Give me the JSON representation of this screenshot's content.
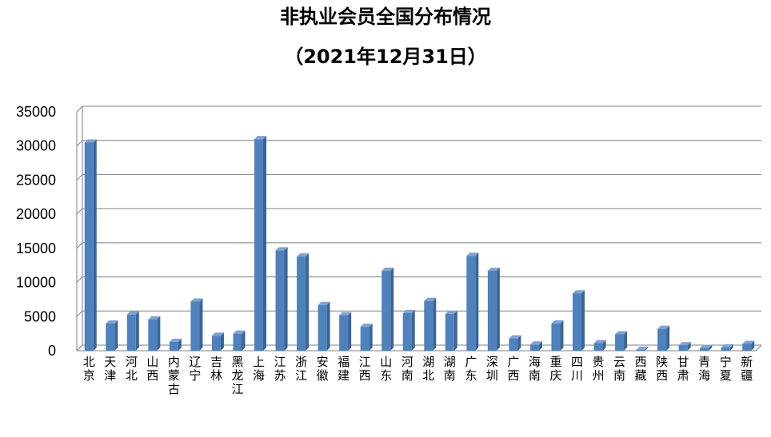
{
  "chart_data": {
    "type": "bar",
    "title": "非执业会员全国分布情况",
    "subtitle": "（2021年12月31日）",
    "ylim": [
      0,
      35000
    ],
    "yticks": [
      0,
      5000,
      10000,
      15000,
      20000,
      25000,
      30000,
      35000
    ],
    "grid": true,
    "categories": [
      "北京",
      "天津",
      "河北",
      "山西",
      "内蒙古",
      "辽宁",
      "吉林",
      "黑龙江",
      "上海",
      "江苏",
      "浙江",
      "安徽",
      "福建",
      "江西",
      "山东",
      "河南",
      "湖北",
      "湖南",
      "广东",
      "深圳",
      "广西",
      "海南",
      "重庆",
      "四川",
      "贵州",
      "云南",
      "西藏",
      "陕西",
      "甘肃",
      "青海",
      "宁夏",
      "新疆"
    ],
    "values": [
      30500,
      4000,
      5300,
      4600,
      1300,
      7200,
      2200,
      2500,
      31000,
      14700,
      13800,
      6700,
      5200,
      3500,
      11700,
      5500,
      7300,
      5400,
      13900,
      11700,
      1800,
      900,
      4000,
      8400,
      1100,
      2400,
      150,
      3200,
      800,
      400,
      500,
      1000
    ],
    "colors": {
      "bar": "#4F81BD",
      "bar_dark": "#3A6597",
      "grid": "#7F7F7F",
      "axis": "#808080"
    }
  }
}
